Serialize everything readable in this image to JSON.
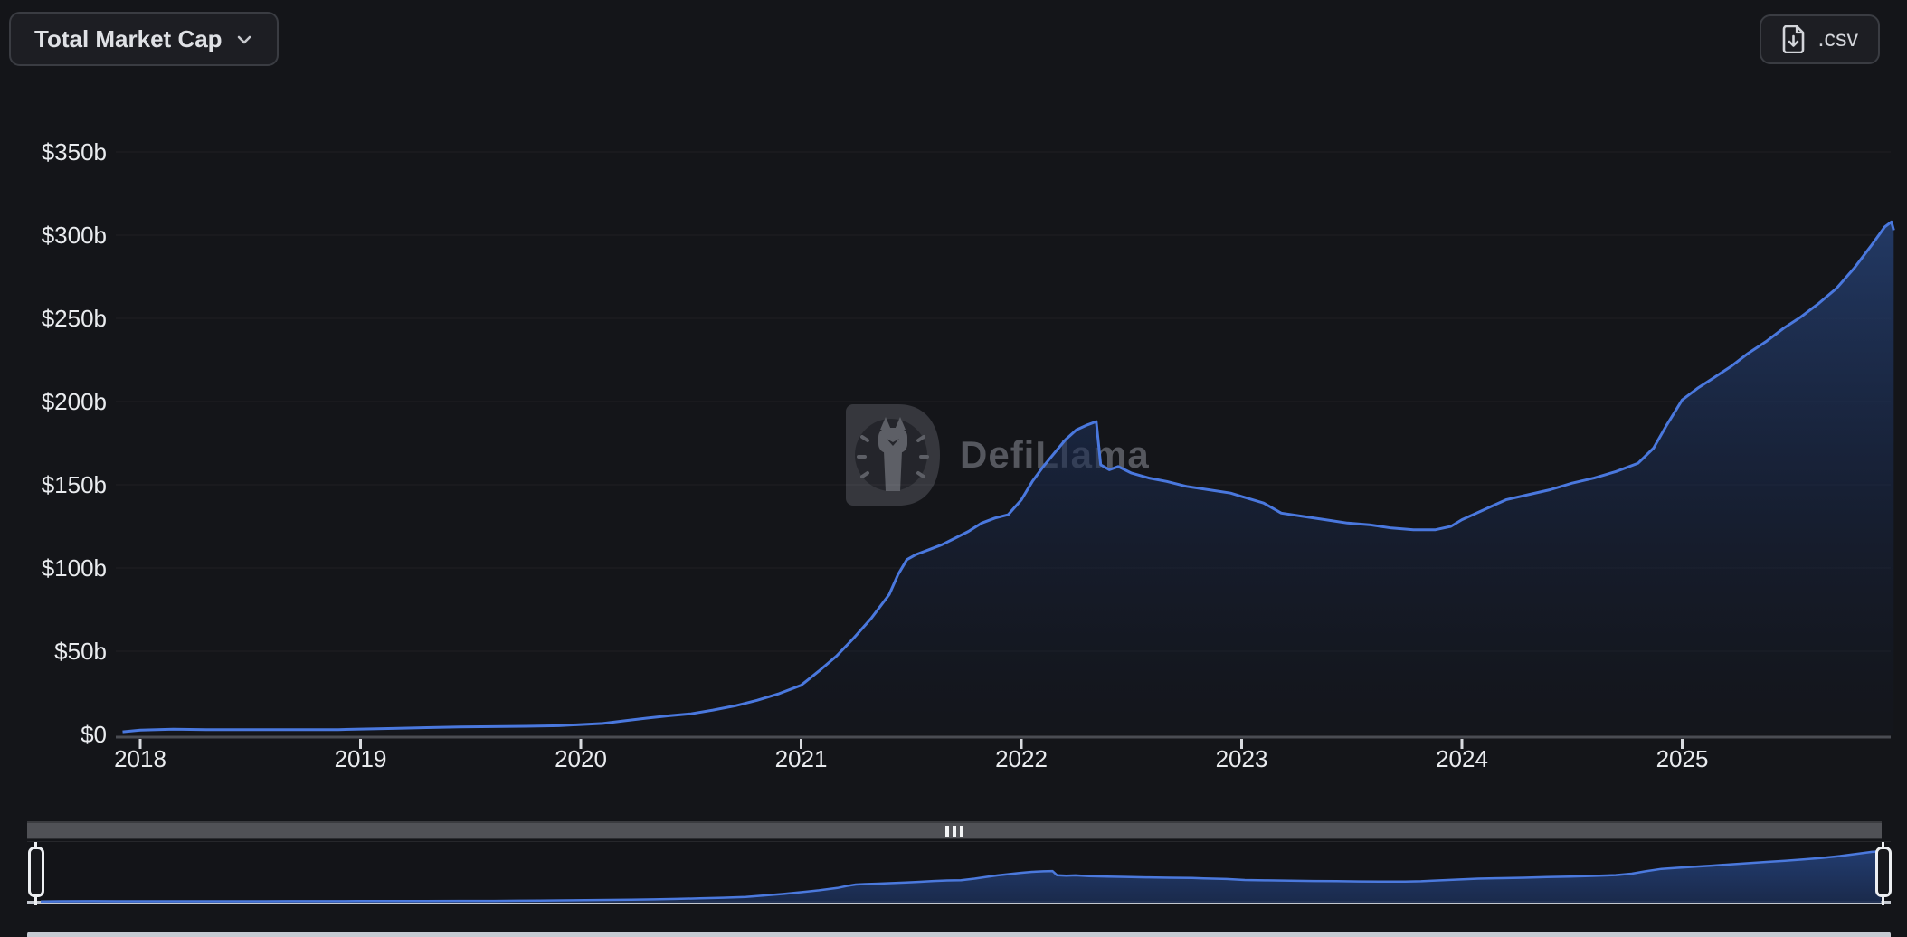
{
  "header": {
    "metric_selector": {
      "label": "Total Market Cap",
      "icon": "chevron-down-icon"
    },
    "export_button": {
      "label": ".csv",
      "icon": "file-download-icon"
    }
  },
  "watermark": {
    "brand": "DefiLlama",
    "icon": "llama-logo"
  },
  "colors": {
    "background": "#141519",
    "line": "#4a78de",
    "area_top": "#2a4a85",
    "axis": "#4a4c52",
    "tick": "#d9dbdf",
    "label": "#e9ebee",
    "nav_fill": "#1d3055",
    "brush": "#edeff2"
  },
  "chart_data": {
    "type": "area",
    "title": "Total Market Cap",
    "unit": "USD billions",
    "legend": "none",
    "grid": "horizontal-faint",
    "x_axis": {
      "range": [
        2017.9,
        2025.97
      ],
      "ticks": [
        {
          "value": 2018,
          "label": "2018"
        },
        {
          "value": 2019,
          "label": "2019"
        },
        {
          "value": 2020,
          "label": "2020"
        },
        {
          "value": 2021,
          "label": "2021"
        },
        {
          "value": 2022,
          "label": "2022"
        },
        {
          "value": 2023,
          "label": "2023"
        },
        {
          "value": 2024,
          "label": "2024"
        },
        {
          "value": 2025,
          "label": "2025"
        }
      ]
    },
    "y_axis": {
      "range": [
        0,
        380
      ],
      "ticks": [
        {
          "value": 0,
          "label": "$0"
        },
        {
          "value": 50,
          "label": "$50b"
        },
        {
          "value": 100,
          "label": "$100b"
        },
        {
          "value": 150,
          "label": "$150b"
        },
        {
          "value": 200,
          "label": "$200b"
        },
        {
          "value": 250,
          "label": "$250b"
        },
        {
          "value": 300,
          "label": "$300b"
        },
        {
          "value": 350,
          "label": "$350b"
        }
      ]
    },
    "series": [
      {
        "name": "Total Market Cap",
        "points": [
          [
            2017.92,
            1.6
          ],
          [
            2018.0,
            2.6
          ],
          [
            2018.15,
            3.1
          ],
          [
            2018.3,
            2.9
          ],
          [
            2018.45,
            2.8
          ],
          [
            2018.6,
            2.9
          ],
          [
            2018.75,
            2.8
          ],
          [
            2018.9,
            2.9
          ],
          [
            2019.0,
            3.2
          ],
          [
            2019.15,
            3.6
          ],
          [
            2019.3,
            4.1
          ],
          [
            2019.45,
            4.5
          ],
          [
            2019.6,
            4.7
          ],
          [
            2019.75,
            4.9
          ],
          [
            2019.9,
            5.2
          ],
          [
            2020.0,
            5.9
          ],
          [
            2020.1,
            6.6
          ],
          [
            2020.2,
            8.2
          ],
          [
            2020.3,
            9.8
          ],
          [
            2020.4,
            11.2
          ],
          [
            2020.5,
            12.4
          ],
          [
            2020.6,
            14.6
          ],
          [
            2020.7,
            17.2
          ],
          [
            2020.8,
            20.5
          ],
          [
            2020.9,
            24.5
          ],
          [
            2021.0,
            29.5
          ],
          [
            2021.08,
            38
          ],
          [
            2021.16,
            47
          ],
          [
            2021.24,
            58
          ],
          [
            2021.32,
            70
          ],
          [
            2021.4,
            84
          ],
          [
            2021.44,
            96
          ],
          [
            2021.48,
            105
          ],
          [
            2021.52,
            108
          ],
          [
            2021.58,
            111
          ],
          [
            2021.64,
            114
          ],
          [
            2021.7,
            118
          ],
          [
            2021.76,
            122
          ],
          [
            2021.82,
            127
          ],
          [
            2021.88,
            130
          ],
          [
            2021.94,
            132
          ],
          [
            2022.0,
            141
          ],
          [
            2022.05,
            152
          ],
          [
            2022.1,
            161
          ],
          [
            2022.15,
            169
          ],
          [
            2022.2,
            177
          ],
          [
            2022.25,
            183
          ],
          [
            2022.3,
            186
          ],
          [
            2022.34,
            188
          ],
          [
            2022.36,
            162
          ],
          [
            2022.4,
            159
          ],
          [
            2022.44,
            161
          ],
          [
            2022.5,
            157
          ],
          [
            2022.58,
            154
          ],
          [
            2022.66,
            152
          ],
          [
            2022.75,
            149
          ],
          [
            2022.85,
            147
          ],
          [
            2022.95,
            145
          ],
          [
            2023.0,
            143
          ],
          [
            2023.1,
            139
          ],
          [
            2023.18,
            133
          ],
          [
            2023.28,
            131
          ],
          [
            2023.38,
            129
          ],
          [
            2023.48,
            127
          ],
          [
            2023.58,
            126
          ],
          [
            2023.68,
            124
          ],
          [
            2023.78,
            123
          ],
          [
            2023.88,
            123
          ],
          [
            2023.95,
            125
          ],
          [
            2024.0,
            129
          ],
          [
            2024.1,
            135
          ],
          [
            2024.2,
            141
          ],
          [
            2024.3,
            144
          ],
          [
            2024.4,
            147
          ],
          [
            2024.5,
            151
          ],
          [
            2024.6,
            154
          ],
          [
            2024.7,
            158
          ],
          [
            2024.8,
            163
          ],
          [
            2024.87,
            172
          ],
          [
            2024.93,
            186
          ],
          [
            2025.0,
            201
          ],
          [
            2025.07,
            208
          ],
          [
            2025.14,
            214
          ],
          [
            2025.22,
            221
          ],
          [
            2025.3,
            229
          ],
          [
            2025.38,
            236
          ],
          [
            2025.46,
            244
          ],
          [
            2025.54,
            251
          ],
          [
            2025.62,
            259
          ],
          [
            2025.7,
            268
          ],
          [
            2025.78,
            280
          ],
          [
            2025.86,
            294
          ],
          [
            2025.92,
            305
          ],
          [
            2025.95,
            308
          ],
          [
            2025.96,
            303
          ]
        ]
      }
    ]
  },
  "navigator": {
    "type": "range-brush",
    "selection": "full-range",
    "grip_icon": "drag-grip-icon"
  }
}
